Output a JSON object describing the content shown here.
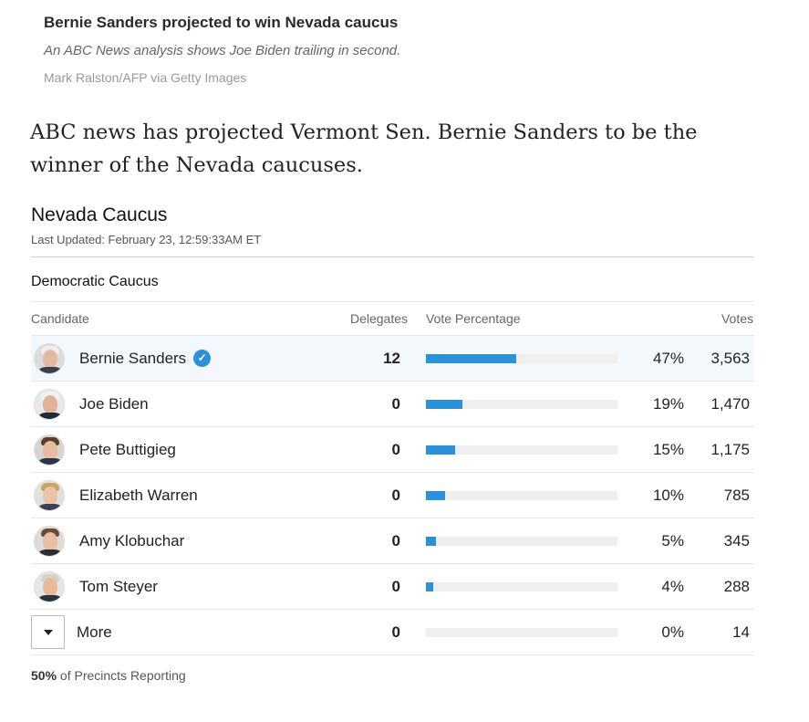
{
  "caption": {
    "title": "Bernie Sanders projected to win Nevada caucus",
    "subtitle": "An ABC News analysis shows Joe Biden trailing in second.",
    "credit": "Mark Ralston/AFP via Getty Images"
  },
  "article": {
    "paragraph": "ABC news has projected Vermont Sen. Bernie Sanders to be the winner of the Nevada caucuses."
  },
  "widget": {
    "title": "Nevada Caucus",
    "last_updated": "Last Updated: February 23, 12:59:33AM ET",
    "section": "Democratic Caucus",
    "headers": {
      "candidate": "Candidate",
      "delegates": "Delegates",
      "vote_pct": "Vote Percentage",
      "votes": "Votes"
    },
    "winner_check": "✓",
    "rows": [
      {
        "name": "Bernie Sanders",
        "delegates": "12",
        "pct_label": "47%",
        "pct": 47,
        "votes": "3,563"
      },
      {
        "name": "Joe Biden",
        "delegates": "0",
        "pct_label": "19%",
        "pct": 19,
        "votes": "1,470"
      },
      {
        "name": "Pete Buttigieg",
        "delegates": "0",
        "pct_label": "15%",
        "pct": 15,
        "votes": "1,175"
      },
      {
        "name": "Elizabeth Warren",
        "delegates": "0",
        "pct_label": "10%",
        "pct": 10,
        "votes": "785"
      },
      {
        "name": "Amy Klobuchar",
        "delegates": "0",
        "pct_label": "5%",
        "pct": 5,
        "votes": "345"
      },
      {
        "name": "Tom Steyer",
        "delegates": "0",
        "pct_label": "4%",
        "pct": 4,
        "votes": "288"
      }
    ],
    "more": {
      "label": "More",
      "delegates": "0",
      "pct_label": "0%",
      "pct": 0,
      "votes": "14"
    },
    "precincts_pct": "50%",
    "precincts_text": " of Precincts Reporting"
  },
  "colors": {
    "accent": "#2b91d8",
    "leader_bg": "#f3f8fd"
  }
}
